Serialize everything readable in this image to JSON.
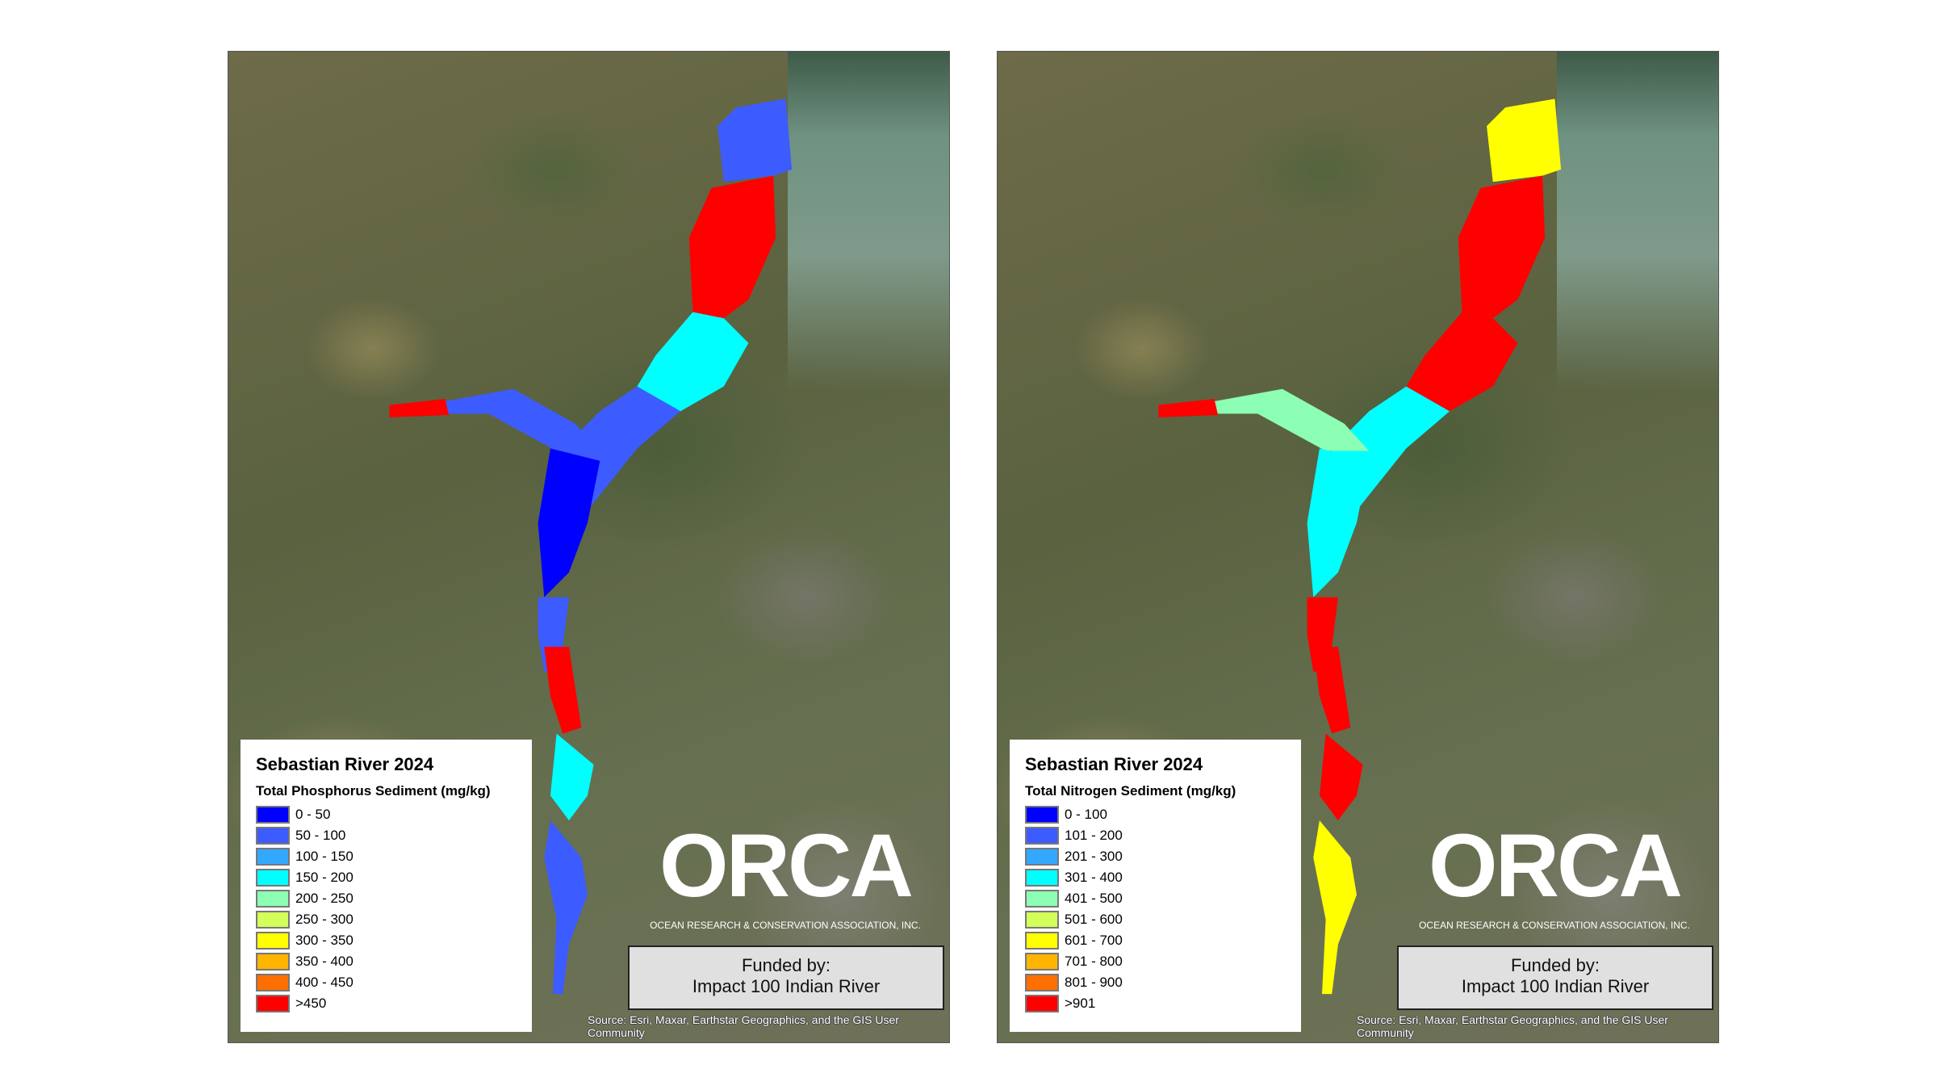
{
  "logo": {
    "name": "ORCA",
    "tagline": "OCEAN RESEARCH & CONSERVATION ASSOCIATION, INC."
  },
  "panels": [
    {
      "legend_title": "Sebastian River 2024",
      "legend_subtitle": "Total Phosphorus Sediment (mg/kg)",
      "legend_items": [
        {
          "label": "0 - 50",
          "color": "#0000FF"
        },
        {
          "label": "50 - 100",
          "color": "#3D5CFF"
        },
        {
          "label": "100 - 150",
          "color": "#33A8FF"
        },
        {
          "label": "150 - 200",
          "color": "#00FFFF"
        },
        {
          "label": "200 - 250",
          "color": "#8CFFB4"
        },
        {
          "label": "250 - 300",
          "color": "#D4FF5A"
        },
        {
          "label": "300 - 350",
          "color": "#FFFF00"
        },
        {
          "label": "350 - 400",
          "color": "#FFB400"
        },
        {
          "label": "400 - 450",
          "color": "#FF6E00"
        },
        {
          "label": ">450",
          "color": "#FF0000"
        }
      ],
      "funded_line1": "Funded by:",
      "funded_line2": "Impact 100 Indian River",
      "source": "Source: Esri, Maxar, Earthstar Geographics, and the GIS User Community"
    },
    {
      "legend_title": "Sebastian River 2024",
      "legend_subtitle": "Total Nitrogen Sediment (mg/kg)",
      "legend_items": [
        {
          "label": "0 - 100",
          "color": "#0000FF"
        },
        {
          "label": "101 - 200",
          "color": "#3D5CFF"
        },
        {
          "label": "201 - 300",
          "color": "#33A8FF"
        },
        {
          "label": "301 - 400",
          "color": "#00FFFF"
        },
        {
          "label": "401 - 500",
          "color": "#8CFFB4"
        },
        {
          "label": "501 - 600",
          "color": "#D4FF5A"
        },
        {
          "label": "601 - 700",
          "color": "#FFFF00"
        },
        {
          "label": "701 - 800",
          "color": "#FFB400"
        },
        {
          "label": "801 - 900",
          "color": "#FF6E00"
        },
        {
          "label": ">901",
          "color": "#FF0000"
        }
      ],
      "funded_line1": "Funded by:",
      "funded_line2": "Impact 100 Indian River",
      "source": "Source: Esri, Maxar, Earthstar Geographics, and the GIS User Community"
    }
  ]
}
